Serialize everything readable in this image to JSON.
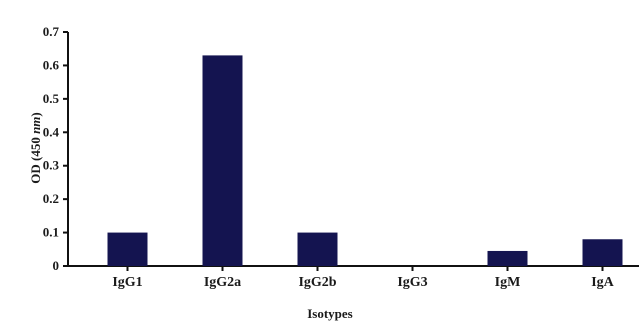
{
  "chart_data": {
    "type": "bar",
    "title": "",
    "xlabel": "Isotypes",
    "ylabel_prefix": "OD (450 ",
    "ylabel_unit": "nm",
    "ylabel_suffix": ")",
    "categories": [
      "IgG1",
      "IgG2a",
      "IgG2b",
      "IgG3",
      "IgM",
      "IgA"
    ],
    "values": [
      0.1,
      0.63,
      0.1,
      0.0,
      0.045,
      0.08
    ],
    "ylim": [
      0,
      0.7
    ],
    "yticks": [
      0,
      0.1,
      0.2,
      0.3,
      0.4,
      0.5,
      0.6,
      0.7
    ],
    "ytick_labels": [
      "0",
      "0.1",
      "0.2",
      "0.3",
      "0.4",
      "0.5",
      "0.6",
      "0.7"
    ],
    "grid": false,
    "legend": "none",
    "bar_color": "#141450"
  }
}
